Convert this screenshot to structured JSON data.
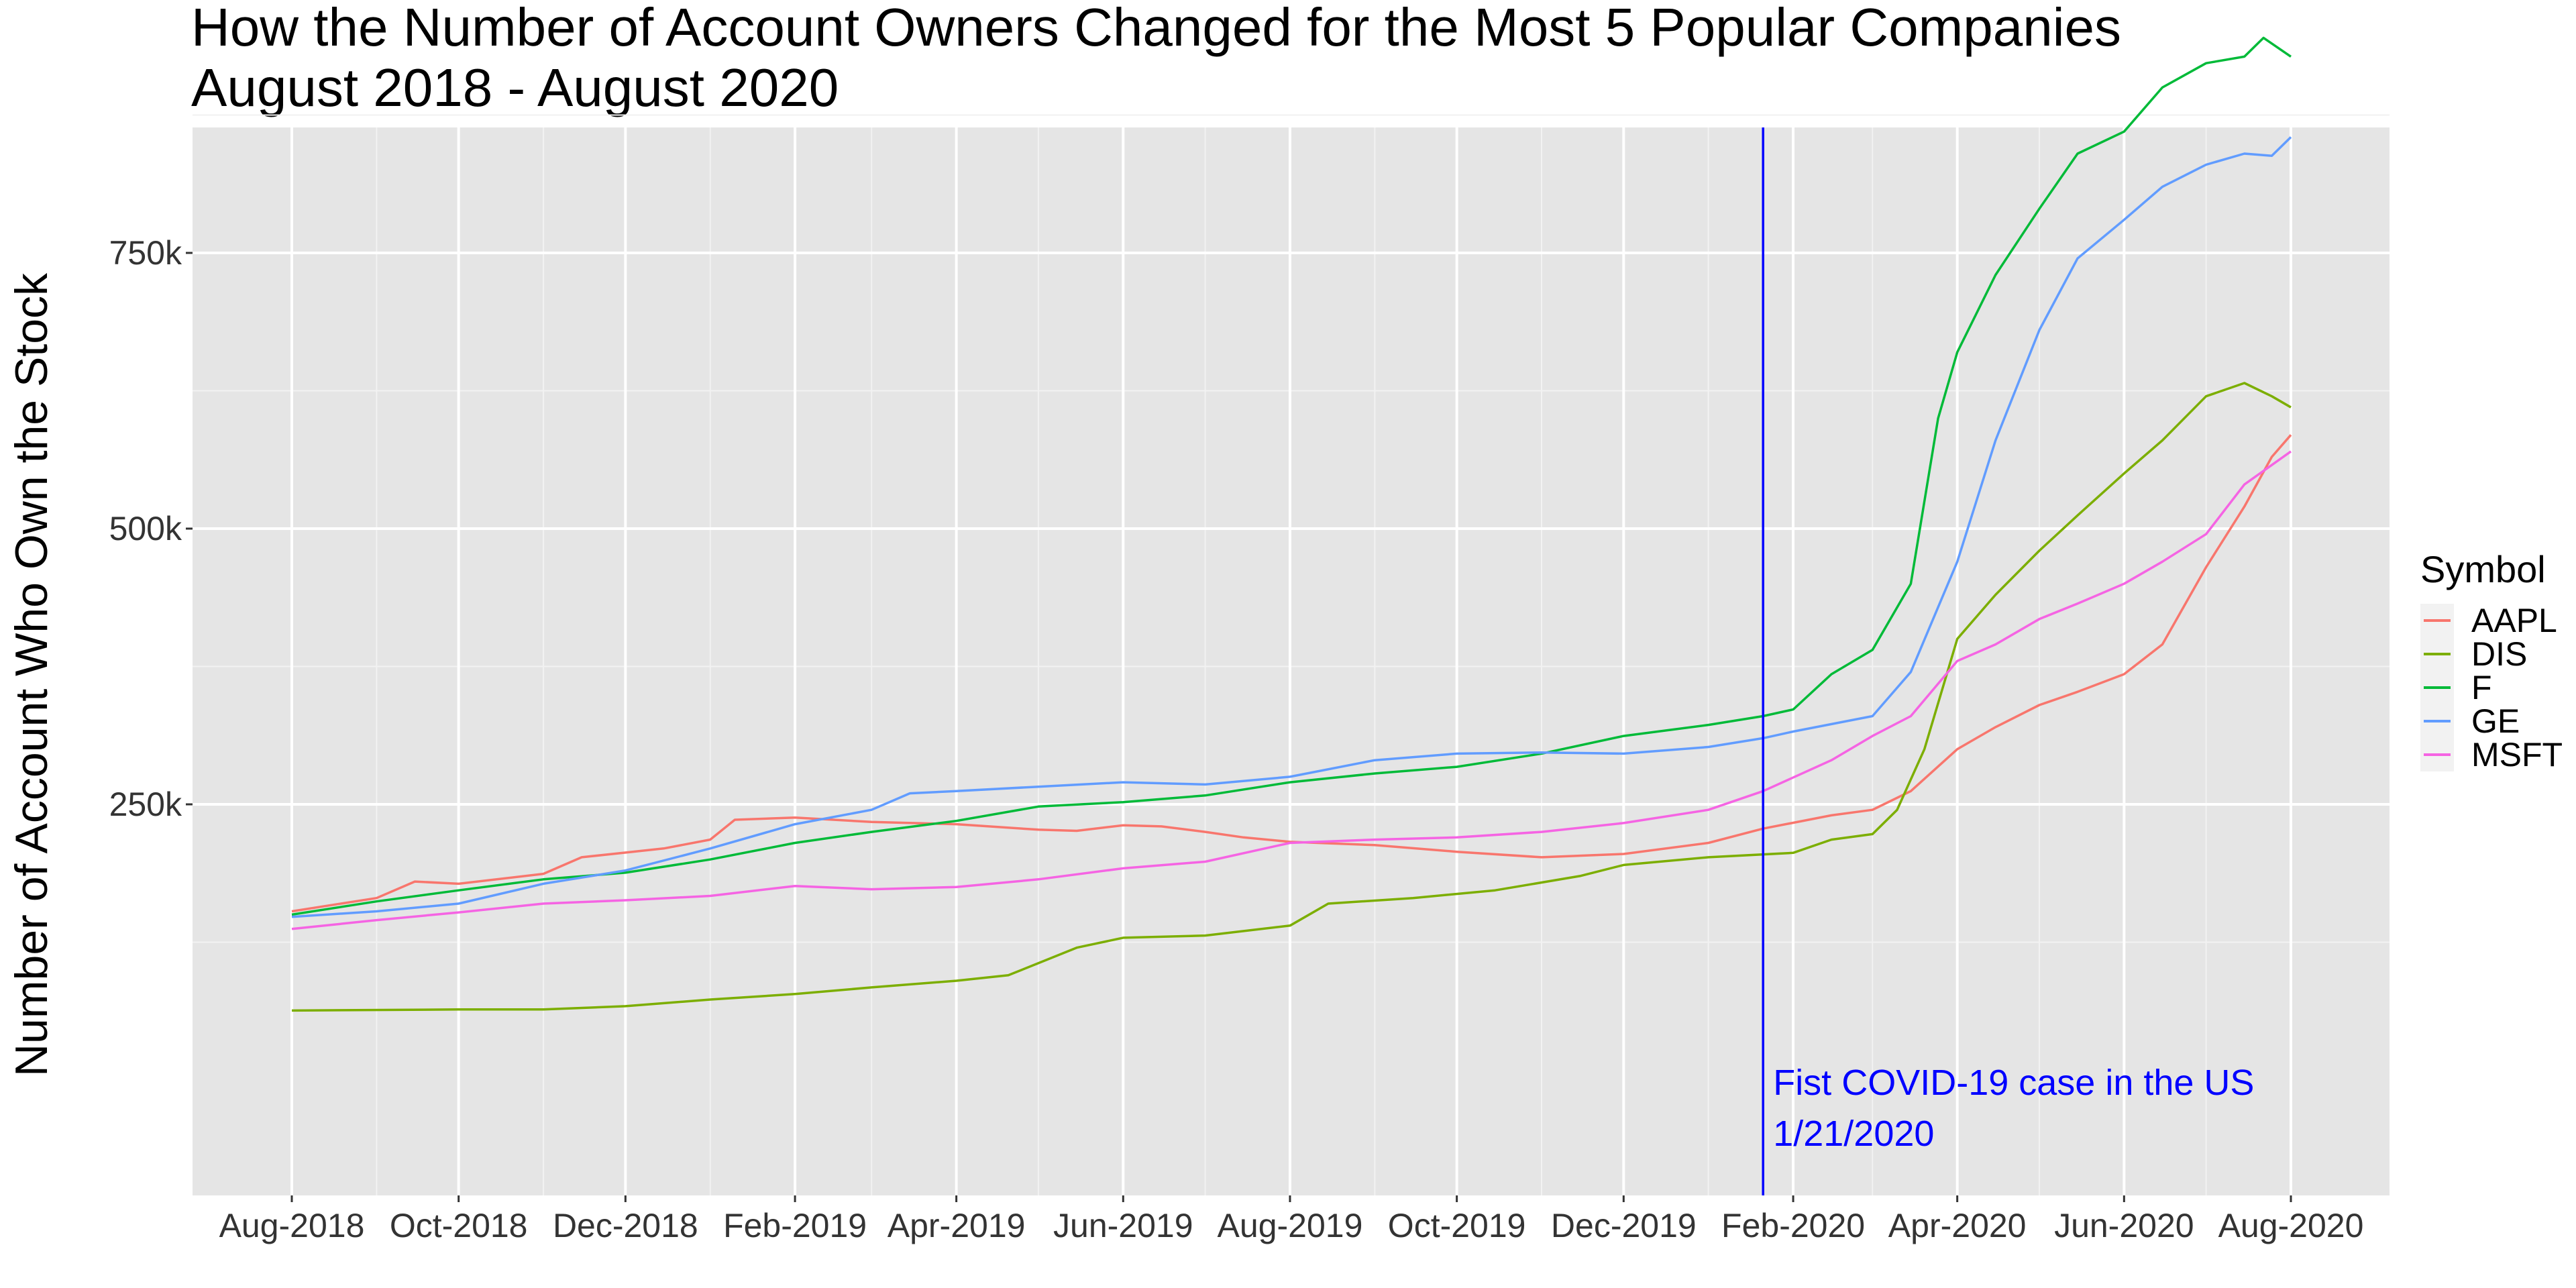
{
  "chart_data": {
    "type": "line",
    "title": "How the Number of Account Owners Changed for the Most 5 Popular Companies",
    "subtitle": "August 2018 - August 2020",
    "xlabel": "",
    "ylabel": "Number of Account Who Own the Stock",
    "x_ticks": [
      "Aug-2018",
      "Oct-2018",
      "Dec-2018",
      "Feb-2019",
      "Apr-2019",
      "Jun-2019",
      "Aug-2019",
      "Oct-2019",
      "Dec-2019",
      "Feb-2020",
      "Apr-2020",
      "Jun-2020",
      "Aug-2020"
    ],
    "y_ticks": [
      250000,
      500000,
      750000
    ],
    "y_tick_labels": [
      "250k",
      "500k",
      "750k"
    ],
    "ylim": [
      0,
      960000
    ],
    "grid": true,
    "background": "#e5e5e5",
    "legend": {
      "title": "Symbol",
      "position": "right"
    },
    "annotation": {
      "date": "2020-01-21",
      "line_color": "#0000ff",
      "text_line1": "Fist COVID-19 case in the US",
      "text_line2": "1/21/2020"
    },
    "series": [
      {
        "name": "AAPL",
        "color": "#F8766D",
        "points": [
          [
            "2018-08-01",
            153000
          ],
          [
            "2018-09-01",
            165000
          ],
          [
            "2018-09-15",
            180000
          ],
          [
            "2018-10-01",
            178000
          ],
          [
            "2018-11-01",
            187000
          ],
          [
            "2018-11-15",
            202000
          ],
          [
            "2018-12-15",
            210000
          ],
          [
            "2019-01-01",
            218000
          ],
          [
            "2019-01-10",
            236000
          ],
          [
            "2019-02-01",
            238000
          ],
          [
            "2019-03-01",
            234000
          ],
          [
            "2019-04-01",
            232000
          ],
          [
            "2019-05-01",
            227000
          ],
          [
            "2019-05-15",
            226000
          ],
          [
            "2019-06-01",
            231000
          ],
          [
            "2019-06-15",
            230000
          ],
          [
            "2019-07-01",
            225000
          ],
          [
            "2019-07-15",
            220000
          ],
          [
            "2019-08-01",
            216000
          ],
          [
            "2019-09-01",
            213000
          ],
          [
            "2019-10-01",
            207000
          ],
          [
            "2019-11-01",
            202000
          ],
          [
            "2019-12-01",
            205000
          ],
          [
            "2020-01-01",
            215000
          ],
          [
            "2020-01-21",
            228000
          ],
          [
            "2020-02-15",
            240000
          ],
          [
            "2020-03-01",
            245000
          ],
          [
            "2020-03-15",
            262000
          ],
          [
            "2020-04-01",
            300000
          ],
          [
            "2020-04-15",
            320000
          ],
          [
            "2020-05-01",
            340000
          ],
          [
            "2020-05-15",
            352000
          ],
          [
            "2020-06-01",
            368000
          ],
          [
            "2020-06-15",
            395000
          ],
          [
            "2020-07-01",
            465000
          ],
          [
            "2020-07-15",
            520000
          ],
          [
            "2020-07-25",
            565000
          ],
          [
            "2020-08-01",
            585000
          ]
        ]
      },
      {
        "name": "DIS",
        "color": "#7CAE00",
        "points": [
          [
            "2018-08-01",
            63000
          ],
          [
            "2018-10-01",
            64000
          ],
          [
            "2018-11-01",
            64000
          ],
          [
            "2018-12-01",
            67000
          ],
          [
            "2019-01-01",
            73000
          ],
          [
            "2019-02-01",
            78000
          ],
          [
            "2019-03-01",
            84000
          ],
          [
            "2019-04-01",
            90000
          ],
          [
            "2019-04-20",
            95000
          ],
          [
            "2019-05-15",
            120000
          ],
          [
            "2019-06-01",
            129000
          ],
          [
            "2019-07-01",
            131000
          ],
          [
            "2019-08-01",
            140000
          ],
          [
            "2019-08-15",
            160000
          ],
          [
            "2019-09-15",
            165000
          ],
          [
            "2019-10-15",
            172000
          ],
          [
            "2019-11-15",
            185000
          ],
          [
            "2019-12-01",
            195000
          ],
          [
            "2020-01-01",
            202000
          ],
          [
            "2020-02-01",
            206000
          ],
          [
            "2020-02-15",
            218000
          ],
          [
            "2020-03-01",
            223000
          ],
          [
            "2020-03-10",
            245000
          ],
          [
            "2020-03-20",
            300000
          ],
          [
            "2020-04-01",
            400000
          ],
          [
            "2020-04-15",
            440000
          ],
          [
            "2020-05-01",
            480000
          ],
          [
            "2020-05-15",
            512000
          ],
          [
            "2020-06-01",
            550000
          ],
          [
            "2020-06-15",
            580000
          ],
          [
            "2020-07-01",
            620000
          ],
          [
            "2020-07-15",
            632000
          ],
          [
            "2020-07-25",
            620000
          ],
          [
            "2020-08-01",
            610000
          ]
        ]
      },
      {
        "name": "F",
        "color": "#00BA38",
        "points": [
          [
            "2018-08-01",
            150000
          ],
          [
            "2018-09-01",
            162000
          ],
          [
            "2018-10-01",
            172000
          ],
          [
            "2018-11-01",
            182000
          ],
          [
            "2018-12-01",
            188000
          ],
          [
            "2019-01-01",
            200000
          ],
          [
            "2019-02-01",
            215000
          ],
          [
            "2019-03-01",
            225000
          ],
          [
            "2019-04-01",
            235000
          ],
          [
            "2019-05-01",
            248000
          ],
          [
            "2019-06-01",
            252000
          ],
          [
            "2019-07-01",
            258000
          ],
          [
            "2019-08-01",
            270000
          ],
          [
            "2019-09-01",
            278000
          ],
          [
            "2019-10-01",
            284000
          ],
          [
            "2019-11-01",
            296000
          ],
          [
            "2019-12-01",
            312000
          ],
          [
            "2020-01-01",
            322000
          ],
          [
            "2020-01-21",
            330000
          ],
          [
            "2020-02-01",
            336000
          ],
          [
            "2020-02-15",
            368000
          ],
          [
            "2020-03-01",
            390000
          ],
          [
            "2020-03-15",
            450000
          ],
          [
            "2020-03-25",
            600000
          ],
          [
            "2020-04-01",
            660000
          ],
          [
            "2020-04-15",
            730000
          ],
          [
            "2020-05-01",
            790000
          ],
          [
            "2020-05-15",
            840000
          ],
          [
            "2020-06-01",
            860000
          ],
          [
            "2020-06-15",
            900000
          ],
          [
            "2020-07-01",
            922000
          ],
          [
            "2020-07-15",
            928000
          ],
          [
            "2020-07-22",
            945000
          ],
          [
            "2020-08-01",
            928000
          ]
        ]
      },
      {
        "name": "GE",
        "color": "#619CFF",
        "points": [
          [
            "2018-08-01",
            148000
          ],
          [
            "2018-09-01",
            153000
          ],
          [
            "2018-10-01",
            160000
          ],
          [
            "2018-11-01",
            178000
          ],
          [
            "2018-12-01",
            190000
          ],
          [
            "2019-01-01",
            210000
          ],
          [
            "2019-02-01",
            232000
          ],
          [
            "2019-03-01",
            245000
          ],
          [
            "2019-03-15",
            260000
          ],
          [
            "2019-04-01",
            262000
          ],
          [
            "2019-05-01",
            266000
          ],
          [
            "2019-06-01",
            270000
          ],
          [
            "2019-07-01",
            268000
          ],
          [
            "2019-08-01",
            275000
          ],
          [
            "2019-09-01",
            290000
          ],
          [
            "2019-10-01",
            296000
          ],
          [
            "2019-11-01",
            297000
          ],
          [
            "2019-12-01",
            296000
          ],
          [
            "2020-01-01",
            302000
          ],
          [
            "2020-01-21",
            310000
          ],
          [
            "2020-02-01",
            316000
          ],
          [
            "2020-03-01",
            330000
          ],
          [
            "2020-03-15",
            370000
          ],
          [
            "2020-04-01",
            470000
          ],
          [
            "2020-04-15",
            580000
          ],
          [
            "2020-05-01",
            680000
          ],
          [
            "2020-05-15",
            745000
          ],
          [
            "2020-06-01",
            780000
          ],
          [
            "2020-06-15",
            810000
          ],
          [
            "2020-07-01",
            830000
          ],
          [
            "2020-07-15",
            840000
          ],
          [
            "2020-07-25",
            838000
          ],
          [
            "2020-08-01",
            855000
          ]
        ]
      },
      {
        "name": "MSFT",
        "color": "#F564E3",
        "points": [
          [
            "2018-08-01",
            137000
          ],
          [
            "2018-09-01",
            145000
          ],
          [
            "2018-10-01",
            152000
          ],
          [
            "2018-11-01",
            160000
          ],
          [
            "2018-12-01",
            163000
          ],
          [
            "2019-01-01",
            167000
          ],
          [
            "2019-02-01",
            176000
          ],
          [
            "2019-03-01",
            173000
          ],
          [
            "2019-04-01",
            175000
          ],
          [
            "2019-05-01",
            182000
          ],
          [
            "2019-06-01",
            192000
          ],
          [
            "2019-07-01",
            198000
          ],
          [
            "2019-08-01",
            215000
          ],
          [
            "2019-09-01",
            218000
          ],
          [
            "2019-10-01",
            220000
          ],
          [
            "2019-11-01",
            225000
          ],
          [
            "2019-12-01",
            233000
          ],
          [
            "2020-01-01",
            245000
          ],
          [
            "2020-01-21",
            262000
          ],
          [
            "2020-02-15",
            290000
          ],
          [
            "2020-03-01",
            312000
          ],
          [
            "2020-03-15",
            330000
          ],
          [
            "2020-04-01",
            380000
          ],
          [
            "2020-04-15",
            395000
          ],
          [
            "2020-05-01",
            418000
          ],
          [
            "2020-05-15",
            432000
          ],
          [
            "2020-06-01",
            450000
          ],
          [
            "2020-06-15",
            470000
          ],
          [
            "2020-07-01",
            495000
          ],
          [
            "2020-07-15",
            540000
          ],
          [
            "2020-08-01",
            570000
          ]
        ]
      }
    ]
  }
}
